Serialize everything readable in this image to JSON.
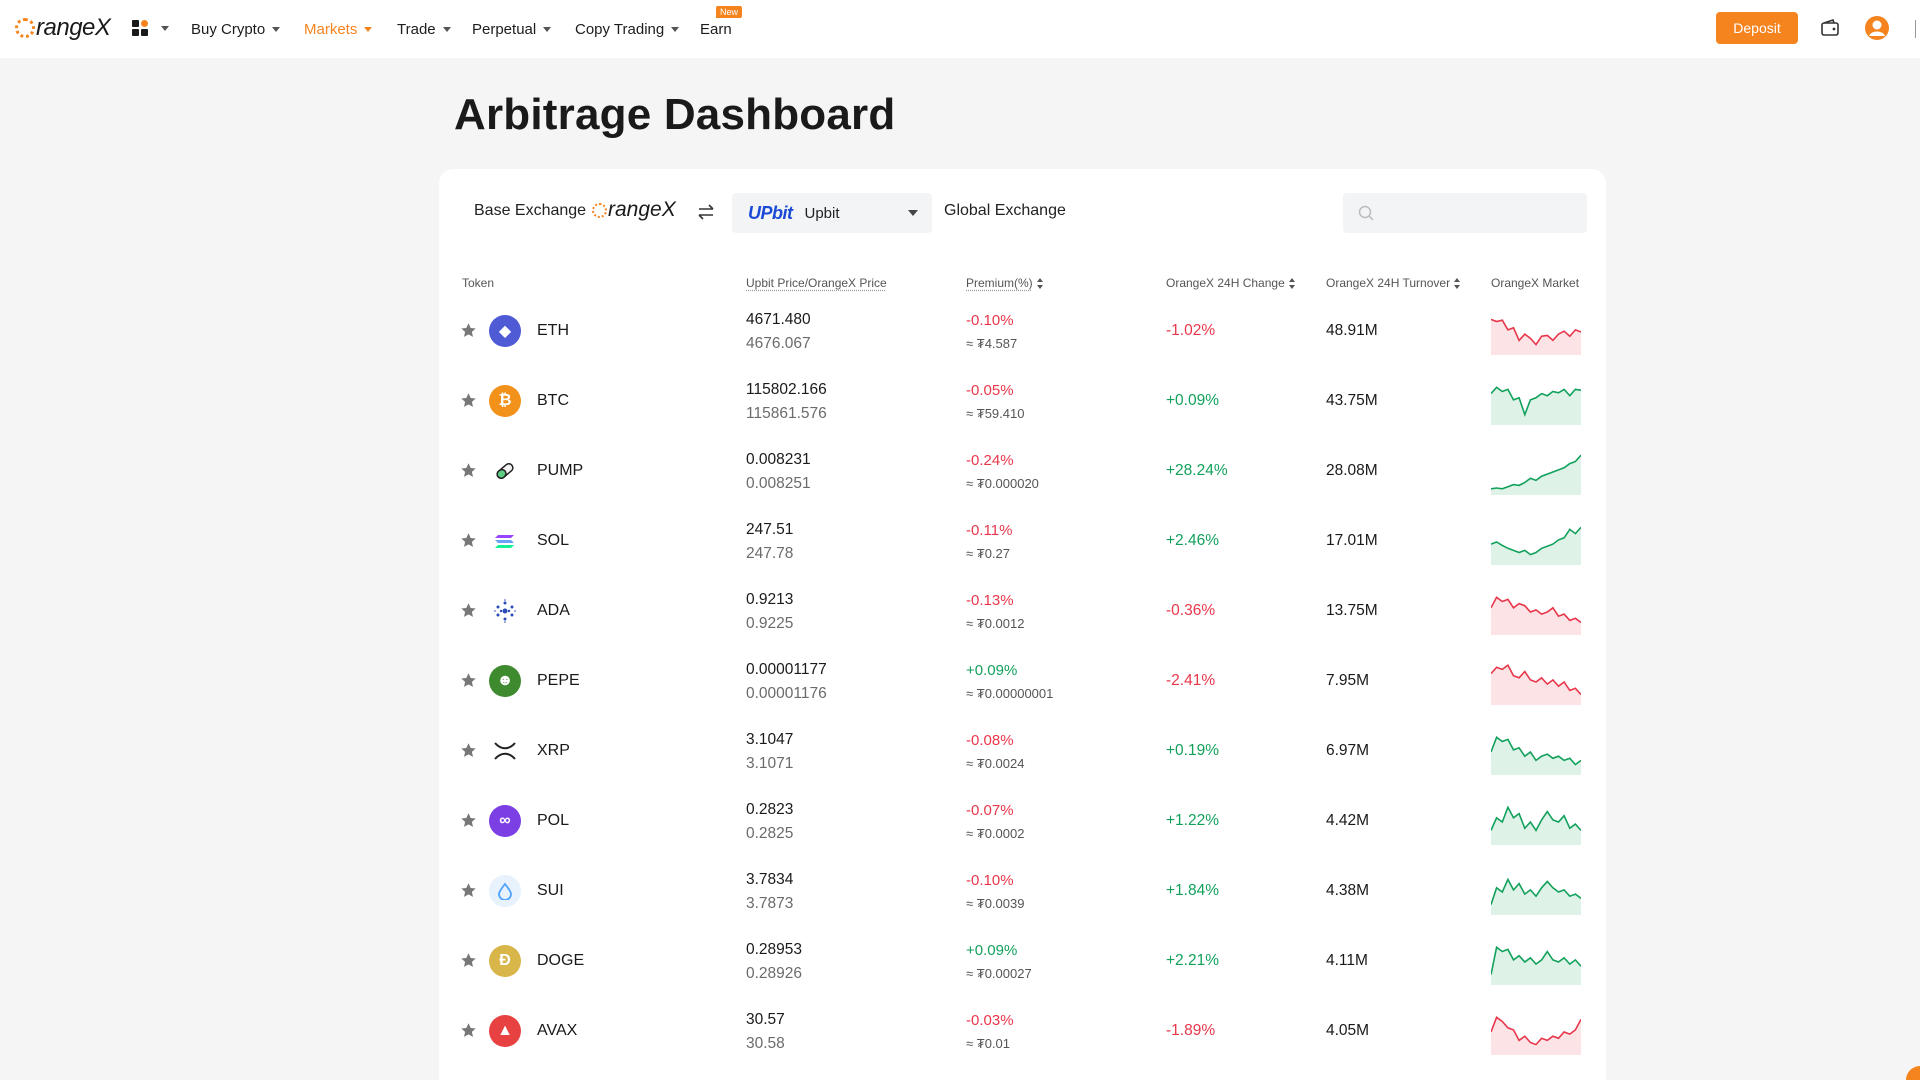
{
  "header": {
    "logo_text": "rangeX",
    "nav": [
      {
        "label": "Buy Crypto",
        "active": false
      },
      {
        "label": "Markets",
        "active": true
      },
      {
        "label": "Trade",
        "active": false
      },
      {
        "label": "Perpetual",
        "active": false
      },
      {
        "label": "Copy Trading",
        "active": false
      },
      {
        "label": "Earn",
        "active": false
      }
    ],
    "earn_badge": "New",
    "deposit_label": "Deposit",
    "icons": [
      "apps-grid-icon",
      "wallet-icon",
      "user-avatar-icon"
    ],
    "accent_color": "#f5841f"
  },
  "page": {
    "title": "Arbitrage Dashboard"
  },
  "filters": {
    "base_label": "Base Exchange",
    "base_exchange_logo": "rangeX",
    "selected_exchange_logo": "UPbit",
    "selected_exchange": "Upbit",
    "global_label": "Global Exchange",
    "search_placeholder": ""
  },
  "table": {
    "headers": {
      "token": "Token",
      "price": "Upbit Price/OrangeX Price",
      "premium": "Premium(%)",
      "change": "OrangeX 24H Change",
      "turnover": "OrangeX 24H Turnover",
      "market": "OrangeX Market"
    },
    "rows": [
      {
        "symbol": "ETH",
        "icon": "eth-icon",
        "upbit_price": "4671.480",
        "orangex_price": "4676.067",
        "premium": "-0.10%",
        "premium_diff": "≈ ₮4.587",
        "change": "-1.02%",
        "turnover": "48.91M",
        "trend": [
          0.8,
          0.75,
          0.78,
          0.55,
          0.6,
          0.3,
          0.45,
          0.35,
          0.2,
          0.4,
          0.42,
          0.3,
          0.45,
          0.52,
          0.4,
          0.55,
          0.5
        ]
      },
      {
        "symbol": "BTC",
        "icon": "btc-icon",
        "upbit_price": "115802.166",
        "orangex_price": "115861.576",
        "premium": "-0.05%",
        "premium_diff": "≈ ₮59.410",
        "change": "+0.09%",
        "turnover": "43.75M",
        "trend": [
          0.7,
          0.85,
          0.75,
          0.8,
          0.55,
          0.6,
          0.2,
          0.55,
          0.6,
          0.7,
          0.65,
          0.75,
          0.72,
          0.8,
          0.65,
          0.8,
          0.78
        ]
      },
      {
        "symbol": "PUMP",
        "icon": "pump-icon",
        "upbit_price": "0.008231",
        "orangex_price": "0.008251",
        "premium": "-0.24%",
        "premium_diff": "≈ ₮0.000020",
        "change": "+28.24%",
        "turnover": "28.08M",
        "trend": [
          0.1,
          0.12,
          0.1,
          0.15,
          0.2,
          0.18,
          0.25,
          0.35,
          0.3,
          0.4,
          0.45,
          0.5,
          0.55,
          0.6,
          0.7,
          0.75,
          0.9
        ]
      },
      {
        "symbol": "SOL",
        "icon": "sol-icon",
        "upbit_price": "247.51",
        "orangex_price": "247.78",
        "premium": "-0.11%",
        "premium_diff": "≈ ₮0.27",
        "change": "+2.46%",
        "turnover": "17.01M",
        "trend": [
          0.45,
          0.5,
          0.42,
          0.35,
          0.3,
          0.25,
          0.3,
          0.2,
          0.25,
          0.35,
          0.4,
          0.45,
          0.55,
          0.6,
          0.8,
          0.7,
          0.85
        ]
      },
      {
        "symbol": "ADA",
        "icon": "ada-icon",
        "upbit_price": "0.9213",
        "orangex_price": "0.9225",
        "premium": "-0.13%",
        "premium_diff": "≈ ₮0.0012",
        "change": "-0.36%",
        "turnover": "13.75M",
        "trend": [
          0.6,
          0.85,
          0.75,
          0.8,
          0.6,
          0.7,
          0.65,
          0.5,
          0.55,
          0.45,
          0.5,
          0.6,
          0.4,
          0.45,
          0.3,
          0.35,
          0.25
        ]
      },
      {
        "symbol": "PEPE",
        "icon": "pepe-icon",
        "upbit_price": "0.00001177",
        "orangex_price": "0.00001176",
        "premium": "+0.09%",
        "premium_diff": "≈ ₮0.00000001",
        "change": "-2.41%",
        "turnover": "7.95M",
        "trend": [
          0.7,
          0.85,
          0.8,
          0.9,
          0.65,
          0.6,
          0.75,
          0.55,
          0.5,
          0.6,
          0.45,
          0.55,
          0.4,
          0.5,
          0.3,
          0.35,
          0.2
        ]
      },
      {
        "symbol": "XRP",
        "icon": "xrp-icon",
        "upbit_price": "3.1047",
        "orangex_price": "3.1071",
        "premium": "-0.08%",
        "premium_diff": "≈ ₮0.0024",
        "change": "+0.19%",
        "turnover": "6.97M",
        "trend": [
          0.5,
          0.85,
          0.75,
          0.8,
          0.55,
          0.6,
          0.4,
          0.5,
          0.3,
          0.4,
          0.45,
          0.35,
          0.4,
          0.3,
          0.35,
          0.2,
          0.3
        ]
      },
      {
        "symbol": "POL",
        "icon": "pol-icon",
        "upbit_price": "0.2823",
        "orangex_price": "0.2825",
        "premium": "-0.07%",
        "premium_diff": "≈ ₮0.0002",
        "change": "+1.22%",
        "turnover": "4.42M",
        "trend": [
          0.3,
          0.6,
          0.5,
          0.85,
          0.6,
          0.7,
          0.35,
          0.5,
          0.3,
          0.55,
          0.75,
          0.55,
          0.5,
          0.65,
          0.35,
          0.45,
          0.3
        ]
      },
      {
        "symbol": "SUI",
        "icon": "sui-icon",
        "upbit_price": "3.7834",
        "orangex_price": "3.7873",
        "premium": "-0.10%",
        "premium_diff": "≈ ₮0.0039",
        "change": "+1.84%",
        "turnover": "4.38M",
        "trend": [
          0.2,
          0.6,
          0.5,
          0.8,
          0.55,
          0.7,
          0.45,
          0.55,
          0.4,
          0.6,
          0.75,
          0.6,
          0.5,
          0.55,
          0.4,
          0.45,
          0.35
        ]
      },
      {
        "symbol": "DOGE",
        "icon": "doge-icon",
        "upbit_price": "0.28953",
        "orangex_price": "0.28926",
        "premium": "+0.09%",
        "premium_diff": "≈ ₮0.00027",
        "change": "+2.21%",
        "turnover": "4.11M",
        "trend": [
          0.2,
          0.85,
          0.75,
          0.8,
          0.55,
          0.65,
          0.5,
          0.6,
          0.45,
          0.55,
          0.75,
          0.55,
          0.5,
          0.6,
          0.45,
          0.55,
          0.4
        ]
      },
      {
        "symbol": "AVAX",
        "icon": "avax-icon",
        "upbit_price": "30.57",
        "orangex_price": "30.58",
        "premium": "-0.03%",
        "premium_diff": "≈ ₮0.01",
        "change": "-1.89%",
        "turnover": "4.05M",
        "trend": [
          0.5,
          0.85,
          0.75,
          0.6,
          0.55,
          0.3,
          0.4,
          0.25,
          0.2,
          0.35,
          0.3,
          0.4,
          0.35,
          0.5,
          0.45,
          0.55,
          0.8
        ]
      }
    ]
  }
}
